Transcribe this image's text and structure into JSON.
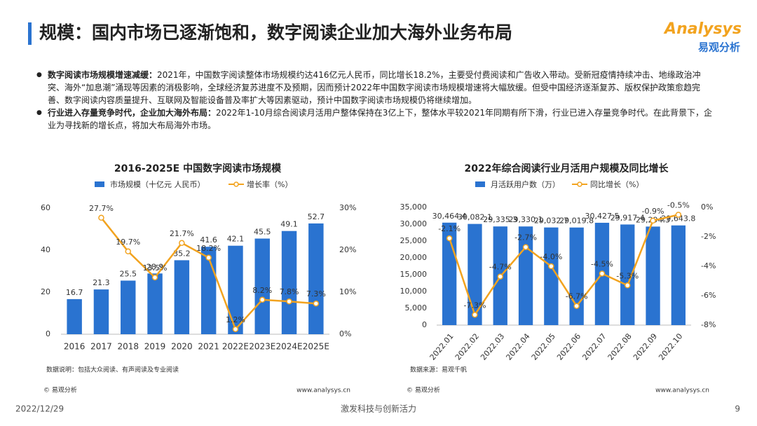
{
  "header": {
    "title": "规模：国内市场已逐渐饱和，数字阅读企业加大海外业务布局",
    "logo": "Analysys",
    "logo_cn": "易观分析"
  },
  "bullets": [
    {
      "bold": "数字阅读市场规模增速减缓：",
      "text": "2021年，中国数字阅读整体市场规模约达416亿元人民币，同比增长18.2%，主要受付费阅读和广告收入带动。受新冠疫情持续冲击、地缘政治冲突、海外“加息潮”涌现等因素的消极影响，全球经济复苏进度不及预期，因而预计2022年中国数字阅读市场规模增速将大幅放缓。但受中国经济逐渐复苏、版权保护政策愈趋完善、数字阅读内容质量提升、互联网及智能设备普及率扩大等因素驱动，预计中国数字阅读市场规模仍将继续增加。"
    },
    {
      "bold": "行业进入存量竞争时代，企业加大海外布局：",
      "text": "2022年1-10月综合阅读月活用户整体保持在3亿上下，整体水平较2021年同期有所下滑，行业已进入存量竞争时代。在此背景下，企业为寻找新的增长点，将加大布局海外市场。"
    }
  ],
  "chart_data": [
    {
      "type": "bar",
      "title": "2016-2025E 中国数字阅读市场规模",
      "categories": [
        "2016",
        "2017",
        "2018",
        "2019",
        "2020",
        "2021",
        "2022E",
        "2023E",
        "2024E",
        "2025E"
      ],
      "series": [
        {
          "name": "市场规模（十亿元 人民币）",
          "type": "bar",
          "color": "#2a73d0",
          "values": [
            16.7,
            21.3,
            25.5,
            28.9,
            35.2,
            41.6,
            42.1,
            45.5,
            49.1,
            52.7
          ]
        },
        {
          "name": "增长率（%）",
          "type": "line",
          "axis": "y2",
          "color": "#f2a31f",
          "values": [
            null,
            27.7,
            19.7,
            13.5,
            21.7,
            18.2,
            1.2,
            8.2,
            7.8,
            7.3
          ],
          "value_labels": [
            null,
            "27.7%",
            "19.7%",
            "13.5%",
            "21.7%",
            "18.2%",
            "1.2%",
            "8.2%",
            "7.8%",
            "7.3%"
          ]
        }
      ],
      "ylim": [
        0,
        60
      ],
      "yticks": [
        0,
        20,
        40,
        60
      ],
      "y2lim": [
        0,
        30
      ],
      "y2ticks": [
        {
          "value": 0,
          "label": "0%"
        },
        {
          "value": 10,
          "label": "10%"
        },
        {
          "value": 20,
          "label": "20%"
        },
        {
          "value": 30,
          "label": "30%"
        }
      ],
      "note": "数据说明：包括大众阅读、有声阅读及专业阅读",
      "source": "© 易观分析",
      "site": "www.analysys.cn"
    },
    {
      "type": "bar",
      "title": "2022年综合阅读行业月活用户规模及同比增长",
      "categories": [
        "2022.01",
        "2022.02",
        "2022.03",
        "2022.04",
        "2022.05",
        "2022.06",
        "2022.07",
        "2022.08",
        "2022.09",
        "2022.10"
      ],
      "series": [
        {
          "name": "月活跃用户数（万）",
          "type": "bar",
          "color": "#2a73d0",
          "values": [
            30464.4,
            30082.1,
            29335.3,
            29330.1,
            29032.7,
            29019.8,
            30427.5,
            29917.4,
            29294.3,
            29643.8
          ],
          "value_labels": [
            "30,464.4",
            "30,082.1",
            "29,335.3",
            "29,330.1",
            "29,032.7",
            "29,019.8",
            "30,427.5",
            "29,917.4",
            "29,294.3",
            "29,643.8"
          ]
        },
        {
          "name": "同比增长（%）",
          "type": "line",
          "axis": "y2",
          "color": "#f2a31f",
          "values": [
            -2.1,
            -7.3,
            -4.7,
            -2.7,
            -4.0,
            -6.7,
            -4.5,
            -5.3,
            -0.9,
            -0.5
          ],
          "value_labels": [
            "-2.1%",
            "-7.3%",
            "-4.7%",
            "-2.7%",
            "-4.0%",
            "-6.7%",
            "-4.5%",
            "-5.3%",
            "-0.9%",
            "-0.5%"
          ]
        }
      ],
      "ylim": [
        0,
        35000
      ],
      "yticks": [
        0,
        {
          "value": 5000,
          "label": "5,000"
        },
        {
          "value": 10000,
          "label": "10,000"
        },
        {
          "value": 15000,
          "label": "15,000"
        },
        {
          "value": 20000,
          "label": "20,000"
        },
        {
          "value": 25000,
          "label": "25,000"
        },
        {
          "value": 30000,
          "label": "30,000"
        },
        {
          "value": 35000,
          "label": "35,000"
        }
      ],
      "y2lim": [
        -8,
        0
      ],
      "y2ticks": [
        {
          "value": 0,
          "label": "0%"
        },
        {
          "value": -2,
          "label": "-2%"
        },
        {
          "value": -4,
          "label": "-4%"
        },
        {
          "value": -6,
          "label": "-6%"
        },
        {
          "value": -8,
          "label": "-8%"
        }
      ],
      "note": "数据来源：易观千帆",
      "source": "© 易观分析",
      "site": "www.analysys.cn"
    }
  ],
  "footer": {
    "date": "2022/12/29",
    "slogan": "激发科技与创新活力",
    "page": "9"
  }
}
